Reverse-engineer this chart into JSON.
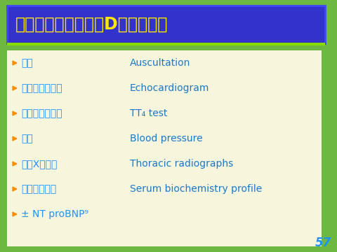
{
  "title": "猫の心不全ステージD必要な検査",
  "title_color": "#FFE800",
  "title_bg": "#3333CC",
  "title_border": "#4444FF",
  "slide_bg": "#6DB840",
  "content_bg": "#F7F5DC",
  "bullet_color": "#FF8C00",
  "text_color_jp": "#1E90FF",
  "text_color_en": "#1878CC",
  "page_number": "57",
  "page_number_color": "#1E90FF",
  "items": [
    {
      "jp": "聴診",
      "en": "Auscultation"
    },
    {
      "jp": "心臓超音波検査",
      "en": "Echocardiogram"
    },
    {
      "jp": "甲状腺機能検査",
      "en": "TT₄ test"
    },
    {
      "jp": "血圧",
      "en": "Blood pressure"
    },
    {
      "jp": "胸部X線検査",
      "en": "Thoracic radiographs"
    },
    {
      "jp": "血液化学検査",
      "en": "Serum biochemistry profile"
    },
    {
      "jp": "± NT proBNP⁹",
      "en": ""
    }
  ]
}
